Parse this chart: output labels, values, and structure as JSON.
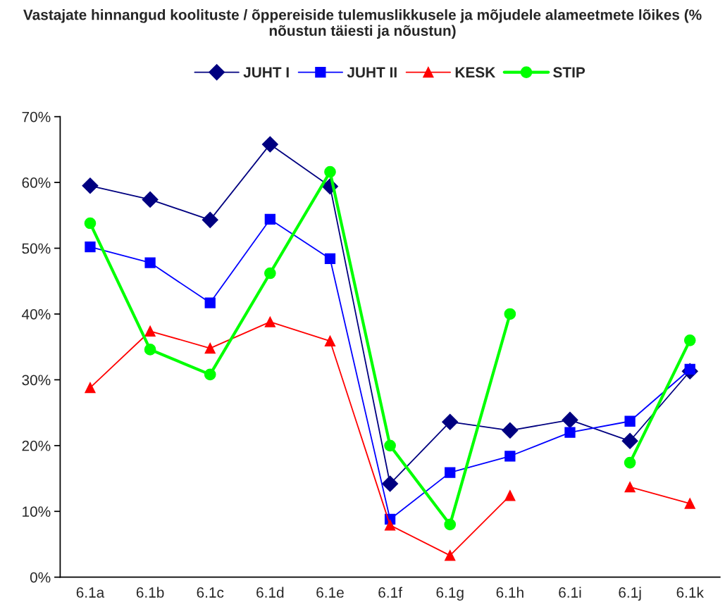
{
  "chart_data": {
    "type": "line",
    "title": "Vastajate hinnangud koolituste / õppereiside tulemuslikkusele ja mõjudele alameetmete lõikes (% nõustun täiesti ja nõustun)",
    "categories": [
      "6.1a",
      "6.1b",
      "6.1c",
      "6.1d",
      "6.1e",
      "6.1f",
      "6.1g",
      "6.1h",
      "6.1i",
      "6.1j",
      "6.1k"
    ],
    "series": [
      {
        "name": "JUHT I",
        "color": "#000080",
        "marker": "diamond",
        "values": [
          59.5,
          57.4,
          54.3,
          65.8,
          59.4,
          14.2,
          23.6,
          22.3,
          23.9,
          20.7,
          31.3
        ]
      },
      {
        "name": "JUHT II",
        "color": "#0000ff",
        "marker": "square",
        "values": [
          50.2,
          47.8,
          41.7,
          54.4,
          48.4,
          8.8,
          15.9,
          18.4,
          22.0,
          23.7,
          31.6
        ]
      },
      {
        "name": "KESK",
        "color": "#ff0000",
        "marker": "triangle",
        "values": [
          28.8,
          37.4,
          34.8,
          38.8,
          35.9,
          7.9,
          3.3,
          12.4,
          null,
          13.7,
          11.2
        ]
      },
      {
        "name": "STIP",
        "color": "#00ff00",
        "marker": "circle",
        "values": [
          53.8,
          34.6,
          30.8,
          46.2,
          61.6,
          20.0,
          8.0,
          40.0,
          null,
          17.4,
          36.0
        ]
      }
    ],
    "ylim": [
      0,
      70
    ],
    "yticks": [
      {
        "value": 0,
        "label": "0%"
      },
      {
        "value": 10,
        "label": "10%"
      },
      {
        "value": 20,
        "label": "20%"
      },
      {
        "value": 30,
        "label": "30%"
      },
      {
        "value": 40,
        "label": "40%"
      },
      {
        "value": 50,
        "label": "50%"
      },
      {
        "value": 60,
        "label": "60%"
      },
      {
        "value": 70,
        "label": "70%"
      }
    ],
    "grid": false,
    "legend": "top",
    "line_style": "solid"
  }
}
